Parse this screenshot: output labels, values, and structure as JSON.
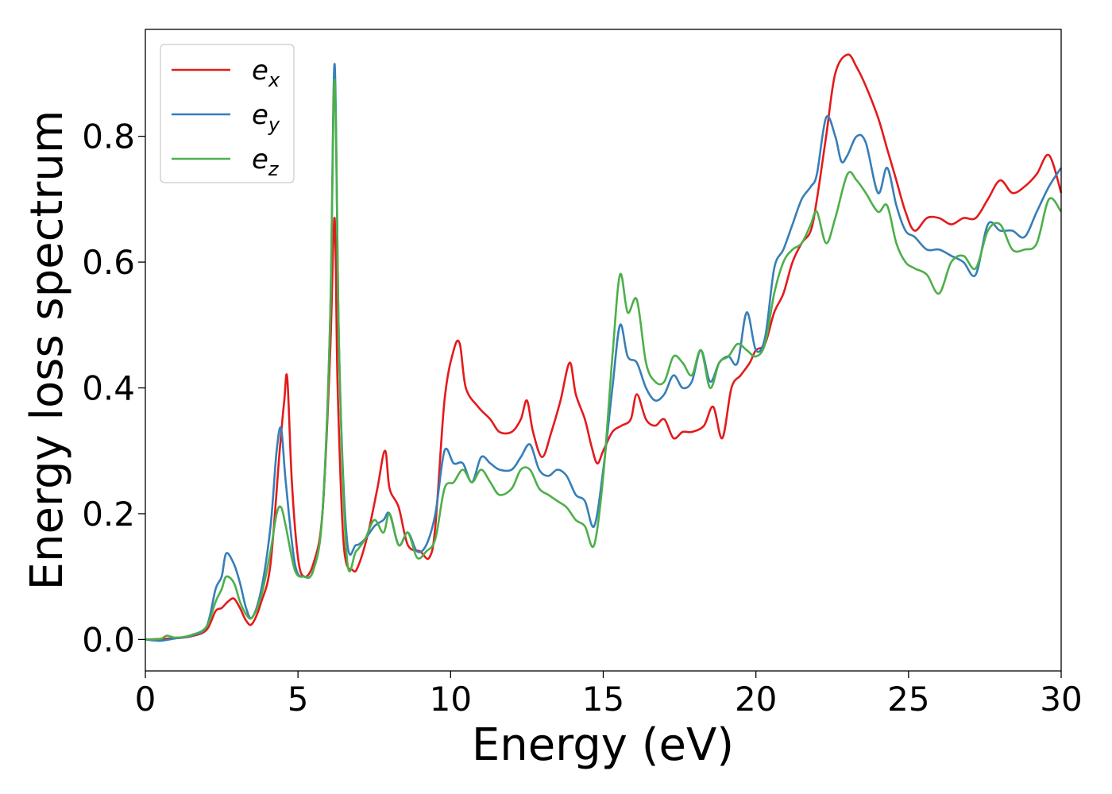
{
  "chart_data": {
    "type": "line",
    "title": "",
    "xlabel": "Energy (eV)",
    "ylabel": "Energy loss spectrum",
    "xlim": [
      0,
      30
    ],
    "ylim": [
      -0.05,
      0.97
    ],
    "xticks": [
      0,
      5,
      10,
      15,
      20,
      25,
      30
    ],
    "yticks": [
      0.0,
      0.2,
      0.4,
      0.6,
      0.8
    ],
    "ytick_labels": [
      "0.0",
      "0.2",
      "0.4",
      "0.6",
      "0.8"
    ],
    "grid": false,
    "legend": "top-left",
    "series": [
      {
        "name": "e",
        "subscript": "x",
        "color": "#e41a1c",
        "points": [
          [
            0,
            0
          ],
          [
            1,
            0.002
          ],
          [
            1.5,
            0.005
          ],
          [
            2,
            0.015
          ],
          [
            2.3,
            0.045
          ],
          [
            2.5,
            0.05
          ],
          [
            2.7,
            0.06
          ],
          [
            2.9,
            0.065
          ],
          [
            3.1,
            0.05
          ],
          [
            3.3,
            0.03
          ],
          [
            3.5,
            0.025
          ],
          [
            3.8,
            0.06
          ],
          [
            4.1,
            0.12
          ],
          [
            4.4,
            0.3
          ],
          [
            4.55,
            0.38
          ],
          [
            4.65,
            0.415
          ],
          [
            4.8,
            0.25
          ],
          [
            5.0,
            0.13
          ],
          [
            5.2,
            0.1
          ],
          [
            5.5,
            0.12
          ],
          [
            5.8,
            0.2
          ],
          [
            6.05,
            0.45
          ],
          [
            6.2,
            0.67
          ],
          [
            6.3,
            0.4
          ],
          [
            6.5,
            0.15
          ],
          [
            6.8,
            0.11
          ],
          [
            7.0,
            0.12
          ],
          [
            7.3,
            0.17
          ],
          [
            7.6,
            0.24
          ],
          [
            7.85,
            0.3
          ],
          [
            8.0,
            0.24
          ],
          [
            8.3,
            0.21
          ],
          [
            8.6,
            0.15
          ],
          [
            9.0,
            0.14
          ],
          [
            9.3,
            0.13
          ],
          [
            9.5,
            0.18
          ],
          [
            9.8,
            0.38
          ],
          [
            10.1,
            0.46
          ],
          [
            10.3,
            0.47
          ],
          [
            10.5,
            0.4
          ],
          [
            10.9,
            0.37
          ],
          [
            11.3,
            0.35
          ],
          [
            11.6,
            0.33
          ],
          [
            12.0,
            0.33
          ],
          [
            12.3,
            0.35
          ],
          [
            12.5,
            0.38
          ],
          [
            12.7,
            0.33
          ],
          [
            13.0,
            0.29
          ],
          [
            13.3,
            0.33
          ],
          [
            13.6,
            0.38
          ],
          [
            13.9,
            0.44
          ],
          [
            14.1,
            0.39
          ],
          [
            14.4,
            0.35
          ],
          [
            14.6,
            0.31
          ],
          [
            14.8,
            0.28
          ],
          [
            15.0,
            0.3
          ],
          [
            15.3,
            0.33
          ],
          [
            15.6,
            0.34
          ],
          [
            15.9,
            0.35
          ],
          [
            16.1,
            0.39
          ],
          [
            16.4,
            0.35
          ],
          [
            16.7,
            0.34
          ],
          [
            17.0,
            0.35
          ],
          [
            17.3,
            0.32
          ],
          [
            17.6,
            0.33
          ],
          [
            17.9,
            0.33
          ],
          [
            18.3,
            0.34
          ],
          [
            18.6,
            0.37
          ],
          [
            18.9,
            0.32
          ],
          [
            19.2,
            0.4
          ],
          [
            19.5,
            0.42
          ],
          [
            19.8,
            0.44
          ],
          [
            20.0,
            0.46
          ],
          [
            20.3,
            0.47
          ],
          [
            20.6,
            0.52
          ],
          [
            20.9,
            0.55
          ],
          [
            21.2,
            0.6
          ],
          [
            21.5,
            0.63
          ],
          [
            21.8,
            0.65
          ],
          [
            22.0,
            0.7
          ],
          [
            22.3,
            0.8
          ],
          [
            22.6,
            0.9
          ],
          [
            23.0,
            0.93
          ],
          [
            23.3,
            0.91
          ],
          [
            23.6,
            0.88
          ],
          [
            24.0,
            0.83
          ],
          [
            24.3,
            0.78
          ],
          [
            24.6,
            0.73
          ],
          [
            24.9,
            0.68
          ],
          [
            25.2,
            0.65
          ],
          [
            25.6,
            0.67
          ],
          [
            26.0,
            0.67
          ],
          [
            26.4,
            0.66
          ],
          [
            26.8,
            0.67
          ],
          [
            27.2,
            0.67
          ],
          [
            27.6,
            0.7
          ],
          [
            28.0,
            0.73
          ],
          [
            28.4,
            0.71
          ],
          [
            28.8,
            0.72
          ],
          [
            29.2,
            0.74
          ],
          [
            29.6,
            0.77
          ],
          [
            30.0,
            0.71
          ]
        ]
      },
      {
        "name": "e",
        "subscript": "y",
        "color": "#377eb8",
        "points": [
          [
            0,
            0
          ],
          [
            0.5,
            -0.002
          ],
          [
            1,
            0.002
          ],
          [
            1.5,
            0.006
          ],
          [
            2,
            0.02
          ],
          [
            2.3,
            0.08
          ],
          [
            2.5,
            0.1
          ],
          [
            2.65,
            0.137
          ],
          [
            2.9,
            0.12
          ],
          [
            3.1,
            0.09
          ],
          [
            3.3,
            0.05
          ],
          [
            3.5,
            0.035
          ],
          [
            3.8,
            0.08
          ],
          [
            4.1,
            0.18
          ],
          [
            4.3,
            0.3
          ],
          [
            4.45,
            0.335
          ],
          [
            4.6,
            0.25
          ],
          [
            4.9,
            0.12
          ],
          [
            5.2,
            0.1
          ],
          [
            5.5,
            0.11
          ],
          [
            5.8,
            0.2
          ],
          [
            6.05,
            0.5
          ],
          [
            6.2,
            0.915
          ],
          [
            6.35,
            0.45
          ],
          [
            6.6,
            0.16
          ],
          [
            6.9,
            0.15
          ],
          [
            7.2,
            0.16
          ],
          [
            7.5,
            0.18
          ],
          [
            7.8,
            0.19
          ],
          [
            8.0,
            0.2
          ],
          [
            8.3,
            0.15
          ],
          [
            8.6,
            0.17
          ],
          [
            8.9,
            0.14
          ],
          [
            9.2,
            0.15
          ],
          [
            9.5,
            0.2
          ],
          [
            9.8,
            0.3
          ],
          [
            10.1,
            0.28
          ],
          [
            10.4,
            0.28
          ],
          [
            10.7,
            0.25
          ],
          [
            11.0,
            0.29
          ],
          [
            11.3,
            0.28
          ],
          [
            11.6,
            0.27
          ],
          [
            12.0,
            0.27
          ],
          [
            12.3,
            0.29
          ],
          [
            12.6,
            0.31
          ],
          [
            12.9,
            0.27
          ],
          [
            13.2,
            0.26
          ],
          [
            13.5,
            0.27
          ],
          [
            13.8,
            0.26
          ],
          [
            14.1,
            0.23
          ],
          [
            14.4,
            0.22
          ],
          [
            14.7,
            0.18
          ],
          [
            15.0,
            0.27
          ],
          [
            15.3,
            0.4
          ],
          [
            15.55,
            0.5
          ],
          [
            15.8,
            0.45
          ],
          [
            16.1,
            0.44
          ],
          [
            16.4,
            0.4
          ],
          [
            16.7,
            0.38
          ],
          [
            17.0,
            0.39
          ],
          [
            17.3,
            0.42
          ],
          [
            17.6,
            0.4
          ],
          [
            17.9,
            0.41
          ],
          [
            18.2,
            0.46
          ],
          [
            18.5,
            0.41
          ],
          [
            18.8,
            0.44
          ],
          [
            19.1,
            0.45
          ],
          [
            19.4,
            0.44
          ],
          [
            19.7,
            0.52
          ],
          [
            20.0,
            0.46
          ],
          [
            20.3,
            0.48
          ],
          [
            20.6,
            0.59
          ],
          [
            20.9,
            0.62
          ],
          [
            21.2,
            0.66
          ],
          [
            21.5,
            0.7
          ],
          [
            21.8,
            0.72
          ],
          [
            22.0,
            0.74
          ],
          [
            22.3,
            0.83
          ],
          [
            22.6,
            0.8
          ],
          [
            22.8,
            0.76
          ],
          [
            23.0,
            0.77
          ],
          [
            23.3,
            0.8
          ],
          [
            23.6,
            0.79
          ],
          [
            24.0,
            0.71
          ],
          [
            24.3,
            0.75
          ],
          [
            24.6,
            0.69
          ],
          [
            24.9,
            0.65
          ],
          [
            25.2,
            0.64
          ],
          [
            25.6,
            0.62
          ],
          [
            26.0,
            0.62
          ],
          [
            26.4,
            0.61
          ],
          [
            26.8,
            0.6
          ],
          [
            27.2,
            0.58
          ],
          [
            27.6,
            0.66
          ],
          [
            28.0,
            0.65
          ],
          [
            28.4,
            0.65
          ],
          [
            28.8,
            0.64
          ],
          [
            29.2,
            0.68
          ],
          [
            29.6,
            0.72
          ],
          [
            30.0,
            0.75
          ]
        ]
      },
      {
        "name": "e",
        "subscript": "z",
        "color": "#4daf4a",
        "points": [
          [
            0,
            0
          ],
          [
            0.5,
            0.001
          ],
          [
            0.7,
            0.006
          ],
          [
            1,
            0.003
          ],
          [
            1.5,
            0.007
          ],
          [
            2,
            0.02
          ],
          [
            2.3,
            0.06
          ],
          [
            2.5,
            0.08
          ],
          [
            2.65,
            0.1
          ],
          [
            2.9,
            0.09
          ],
          [
            3.1,
            0.06
          ],
          [
            3.3,
            0.04
          ],
          [
            3.5,
            0.035
          ],
          [
            3.8,
            0.07
          ],
          [
            4.1,
            0.14
          ],
          [
            4.3,
            0.2
          ],
          [
            4.45,
            0.21
          ],
          [
            4.6,
            0.18
          ],
          [
            4.9,
            0.11
          ],
          [
            5.2,
            0.1
          ],
          [
            5.5,
            0.11
          ],
          [
            5.8,
            0.2
          ],
          [
            6.05,
            0.5
          ],
          [
            6.2,
            0.89
          ],
          [
            6.35,
            0.45
          ],
          [
            6.6,
            0.13
          ],
          [
            6.9,
            0.14
          ],
          [
            7.2,
            0.16
          ],
          [
            7.5,
            0.19
          ],
          [
            7.8,
            0.17
          ],
          [
            8.0,
            0.2
          ],
          [
            8.3,
            0.15
          ],
          [
            8.6,
            0.17
          ],
          [
            8.9,
            0.13
          ],
          [
            9.2,
            0.14
          ],
          [
            9.5,
            0.16
          ],
          [
            9.8,
            0.24
          ],
          [
            10.1,
            0.25
          ],
          [
            10.4,
            0.27
          ],
          [
            10.7,
            0.25
          ],
          [
            11.0,
            0.27
          ],
          [
            11.3,
            0.25
          ],
          [
            11.6,
            0.23
          ],
          [
            12.0,
            0.24
          ],
          [
            12.3,
            0.27
          ],
          [
            12.6,
            0.27
          ],
          [
            12.9,
            0.24
          ],
          [
            13.2,
            0.23
          ],
          [
            13.5,
            0.22
          ],
          [
            13.8,
            0.21
          ],
          [
            14.1,
            0.19
          ],
          [
            14.4,
            0.18
          ],
          [
            14.7,
            0.15
          ],
          [
            15.0,
            0.26
          ],
          [
            15.3,
            0.45
          ],
          [
            15.55,
            0.58
          ],
          [
            15.8,
            0.52
          ],
          [
            16.1,
            0.54
          ],
          [
            16.4,
            0.44
          ],
          [
            16.7,
            0.41
          ],
          [
            17.0,
            0.41
          ],
          [
            17.3,
            0.45
          ],
          [
            17.6,
            0.44
          ],
          [
            17.9,
            0.42
          ],
          [
            18.2,
            0.46
          ],
          [
            18.5,
            0.4
          ],
          [
            18.8,
            0.44
          ],
          [
            19.1,
            0.45
          ],
          [
            19.4,
            0.47
          ],
          [
            19.7,
            0.46
          ],
          [
            20.0,
            0.45
          ],
          [
            20.3,
            0.47
          ],
          [
            20.6,
            0.55
          ],
          [
            20.9,
            0.6
          ],
          [
            21.2,
            0.62
          ],
          [
            21.5,
            0.63
          ],
          [
            21.8,
            0.66
          ],
          [
            22.0,
            0.68
          ],
          [
            22.3,
            0.63
          ],
          [
            22.6,
            0.67
          ],
          [
            23.0,
            0.74
          ],
          [
            23.3,
            0.73
          ],
          [
            23.6,
            0.71
          ],
          [
            24.0,
            0.68
          ],
          [
            24.3,
            0.69
          ],
          [
            24.6,
            0.63
          ],
          [
            24.9,
            0.6
          ],
          [
            25.2,
            0.59
          ],
          [
            25.6,
            0.58
          ],
          [
            26.0,
            0.55
          ],
          [
            26.4,
            0.6
          ],
          [
            26.8,
            0.61
          ],
          [
            27.2,
            0.59
          ],
          [
            27.6,
            0.65
          ],
          [
            28.0,
            0.66
          ],
          [
            28.4,
            0.62
          ],
          [
            28.8,
            0.62
          ],
          [
            29.2,
            0.63
          ],
          [
            29.6,
            0.7
          ],
          [
            30.0,
            0.68
          ]
        ]
      }
    ]
  }
}
